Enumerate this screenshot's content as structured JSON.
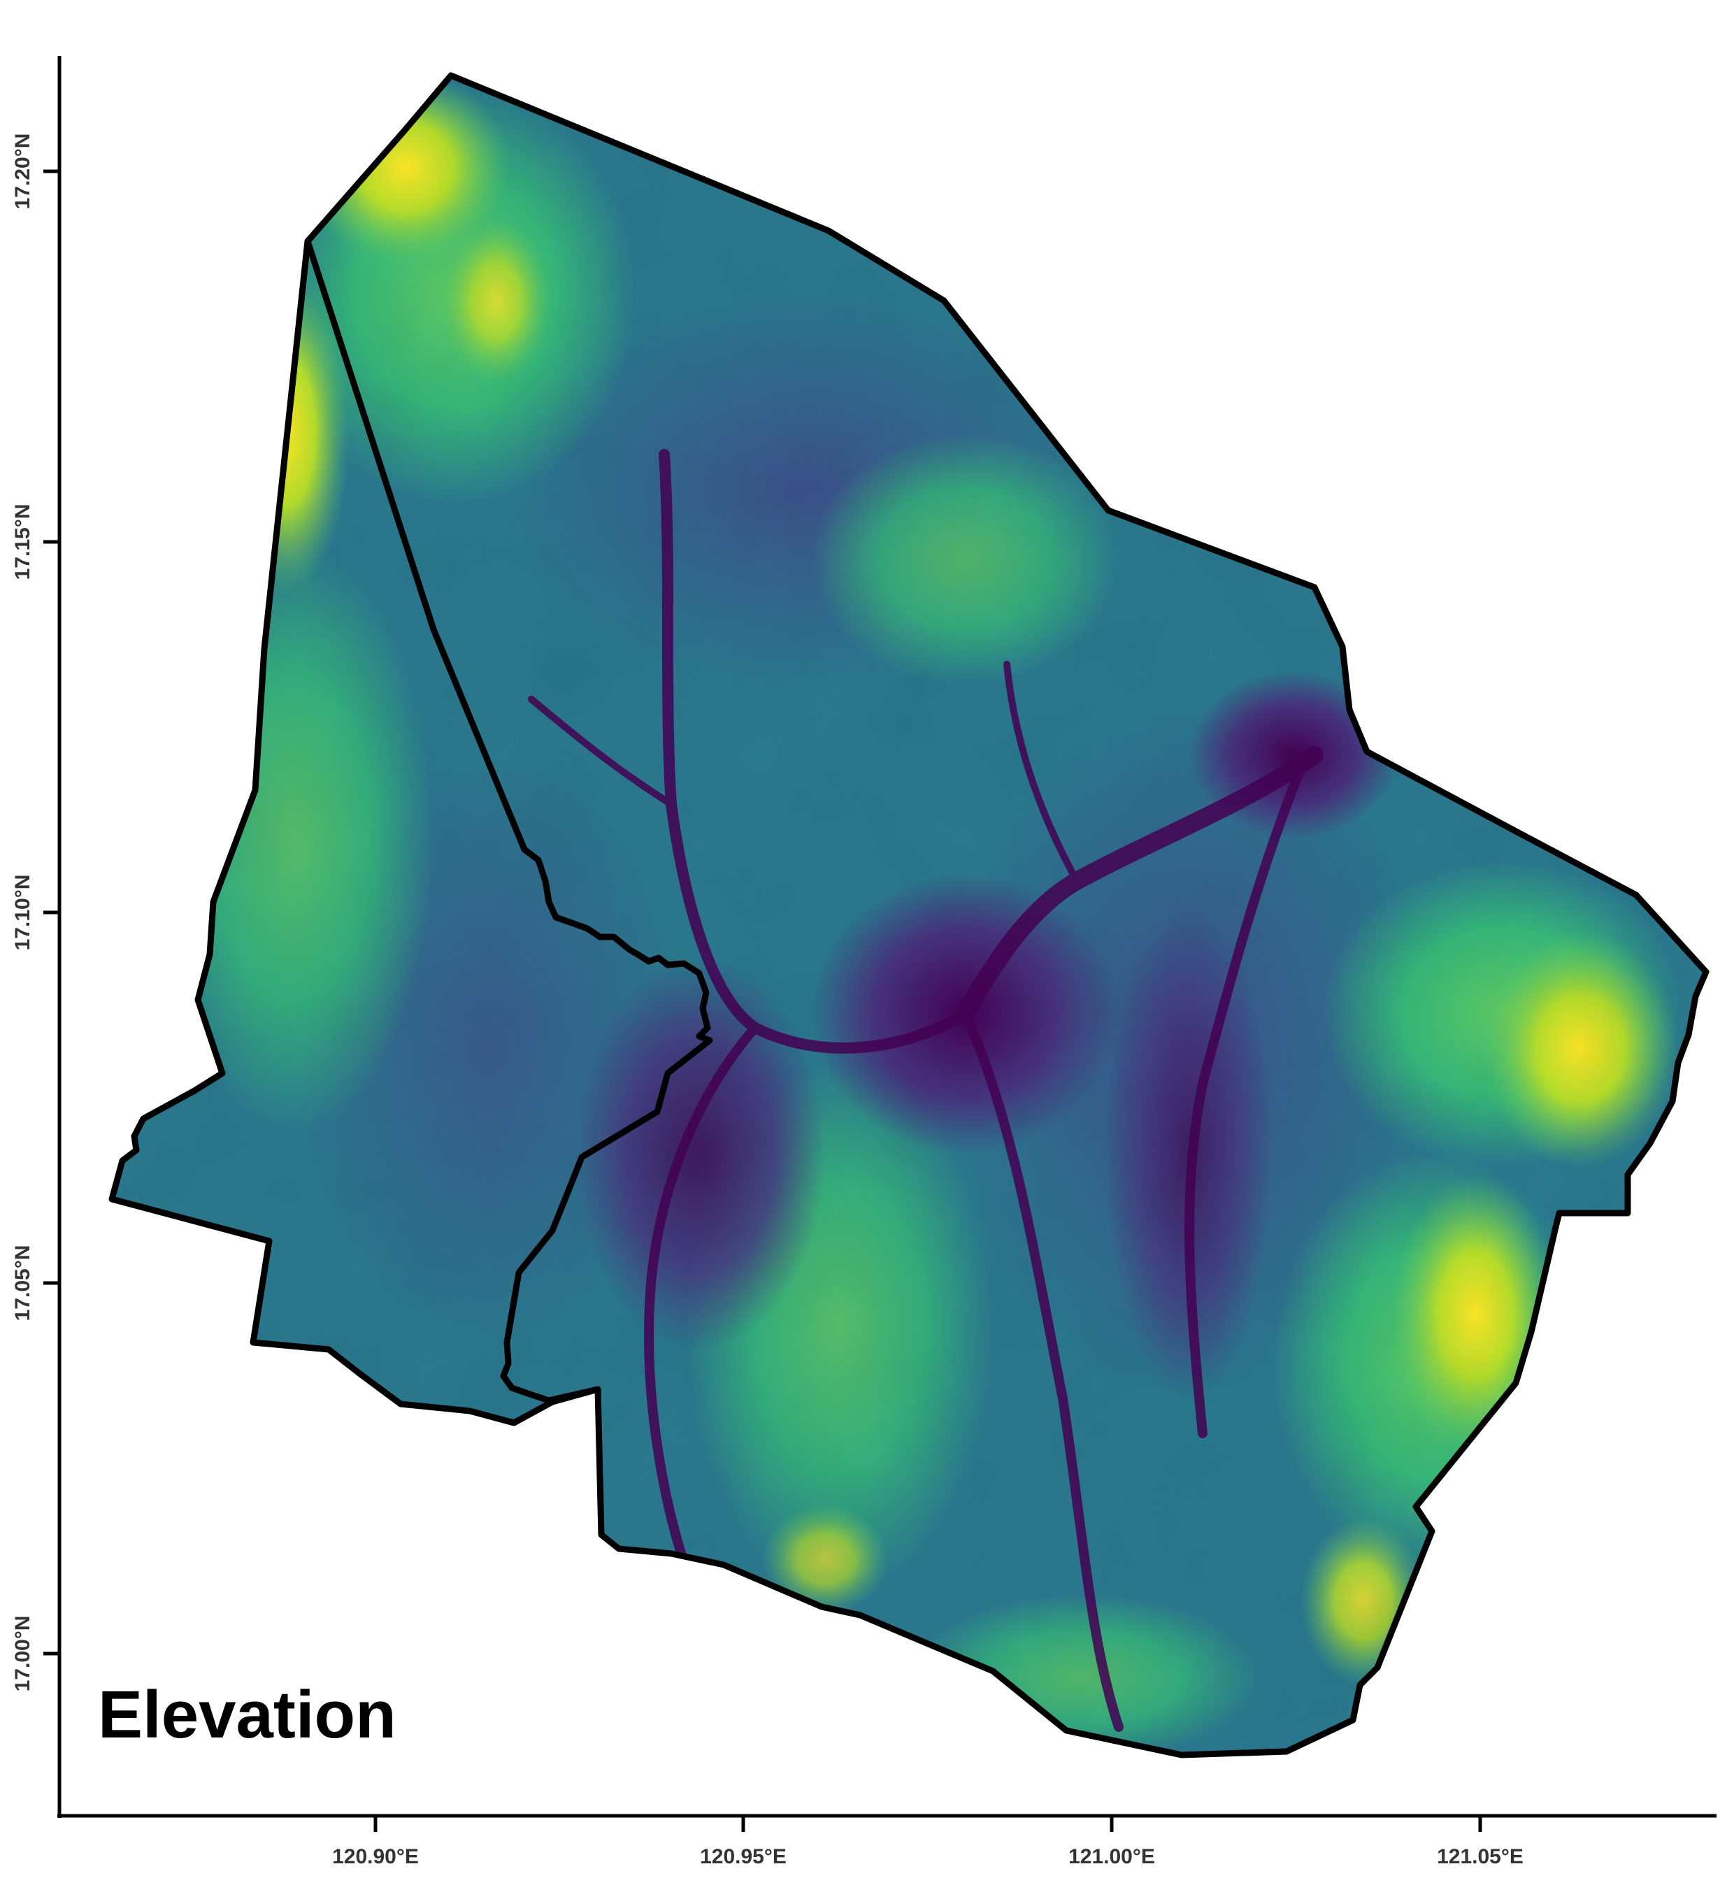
{
  "map": {
    "title": "Elevation",
    "x_ticks": [
      "120.90°E",
      "120.95°E",
      "121.00°E",
      "121.05°E"
    ],
    "y_ticks": [
      "17.20°N",
      "17.15°N",
      "17.10°N",
      "17.05°N",
      "17.00°N"
    ],
    "colormap": {
      "name": "viridis",
      "low": "#440154",
      "mid_low": "#3b528b",
      "mid": "#21908d",
      "mid_high": "#5dc963",
      "high": "#fde725"
    },
    "boundary_color": "#000000"
  }
}
